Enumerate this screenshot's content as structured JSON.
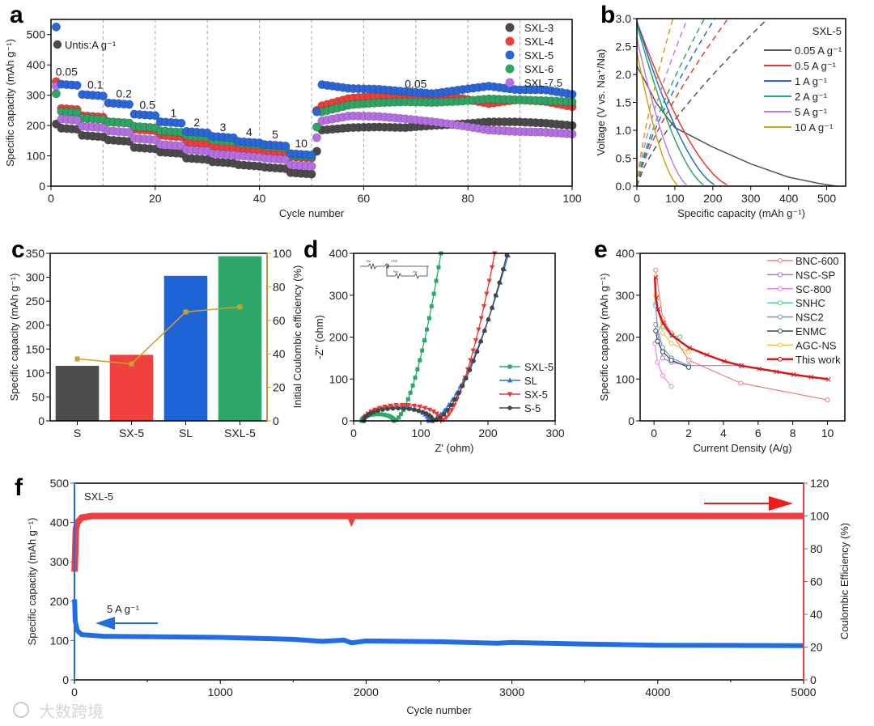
{
  "panels": [
    "a",
    "b",
    "c",
    "d",
    "e",
    "f"
  ],
  "watermark": "大数跨境",
  "chart_data": [
    {
      "id": "a",
      "type": "scatter",
      "xlabel": "Cycle number",
      "ylabel": "Specific capacity (mAh g⁻¹)",
      "xlim": [
        0,
        100
      ],
      "ylim": [
        0,
        550
      ],
      "xticks": [
        0,
        20,
        40,
        60,
        80,
        100
      ],
      "yticks": [
        0,
        100,
        200,
        300,
        400,
        500
      ],
      "grid": "dashed vertical every 10 cycles",
      "units_note": "Untis:A g⁻¹",
      "rate_labels": [
        {
          "text": "0.05",
          "x": 3,
          "y": 365
        },
        {
          "text": "0.1",
          "x": 8.5,
          "y": 322
        },
        {
          "text": "0.2",
          "x": 14,
          "y": 292
        },
        {
          "text": "0.5",
          "x": 18.5,
          "y": 255
        },
        {
          "text": "1",
          "x": 23.5,
          "y": 228
        },
        {
          "text": "2",
          "x": 28,
          "y": 198
        },
        {
          "text": "3",
          "x": 33,
          "y": 182
        },
        {
          "text": "4",
          "x": 38,
          "y": 165
        },
        {
          "text": "5",
          "x": 43,
          "y": 158
        },
        {
          "text": "10",
          "x": 48,
          "y": 128
        },
        {
          "text": "0.05",
          "x": 70,
          "y": 325
        }
      ],
      "legend": "top-right",
      "series": [
        {
          "name": "SXL-3",
          "color": "#4a4a4a",
          "cycle1": 205,
          "rate_segments": [
            190,
            165,
            150,
            125,
            110,
            90,
            78,
            68,
            60,
            42
          ],
          "cycle51": 115,
          "recovery_segments": [
            185,
            193,
            195,
            193,
            200,
            205,
            212,
            212,
            208,
            200
          ]
        },
        {
          "name": "SXL-4",
          "color": "#ea3f3b",
          "cycle1": 345,
          "rate_segments": [
            255,
            230,
            210,
            185,
            165,
            140,
            125,
            115,
            105,
            95
          ],
          "cycle51": 250,
          "recovery_segments": [
            265,
            290,
            298,
            300,
            298,
            290,
            272,
            285,
            280,
            262
          ]
        },
        {
          "name": "SXL-6",
          "color": "#2fa564",
          "cycle1": 305,
          "rate_segments": [
            245,
            222,
            210,
            195,
            180,
            165,
            150,
            140,
            130,
            100
          ],
          "cycle51": 195,
          "recovery_segments": [
            245,
            268,
            275,
            278,
            276,
            280,
            288,
            285,
            282,
            278
          ]
        },
        {
          "name": "SXL-7.5",
          "color": "#b66fe2",
          "cycle1": 330,
          "rate_segments": [
            220,
            195,
            180,
            155,
            135,
            118,
            105,
            98,
            90,
            68
          ],
          "cycle51": 160,
          "recovery_segments": [
            215,
            232,
            230,
            222,
            212,
            200,
            185,
            180,
            178,
            172
          ]
        },
        {
          "name": "SXL-5",
          "color": "#2a66d8",
          "cycle1": 525,
          "rate_segments": [
            335,
            300,
            272,
            235,
            210,
            178,
            162,
            145,
            135,
            105
          ],
          "cycle51": 245,
          "recovery_segments": [
            335,
            322,
            320,
            312,
            305,
            318,
            330,
            318,
            318,
            303
          ]
        }
      ],
      "legend_order": [
        "SXL-3",
        "SXL-4",
        "SXL-5",
        "SXL-6",
        "SXL-7.5"
      ]
    },
    {
      "id": "b",
      "type": "line",
      "title": "SXL-5",
      "xlabel": "Specific capacity (mAh g⁻¹)",
      "ylabel": "Voltage (V vs. Na⁺/Na)",
      "xlim": [
        0,
        550
      ],
      "ylim": [
        0,
        3.0
      ],
      "xticks": [
        0,
        100,
        200,
        300,
        400,
        500
      ],
      "yticks": [
        0.0,
        0.5,
        1.0,
        1.5,
        2.0,
        2.5,
        3.0
      ],
      "ytick_labels": [
        "0.0",
        "0.5",
        "1.0",
        "1.5",
        "2.0",
        "2.5",
        "3.0"
      ],
      "legend": "top-right",
      "series": [
        {
          "name": "0.05  A g⁻¹",
          "color": "#555555",
          "start_voltage": 2.15,
          "discharge_capacity": 525,
          "charge_capacity": 345
        },
        {
          "name": "0.5 A g⁻¹",
          "color": "#e53935",
          "start_voltage": 2.95,
          "discharge_capacity": 250,
          "charge_capacity": 240
        },
        {
          "name": "1 A g⁻¹",
          "color": "#1e6fd9",
          "start_voltage": 2.95,
          "discharge_capacity": 215,
          "charge_capacity": 205
        },
        {
          "name": "2 A g⁻¹",
          "color": "#27a86a",
          "start_voltage": 2.9,
          "discharge_capacity": 185,
          "charge_capacity": 178
        },
        {
          "name": "5 A g⁻¹",
          "color": "#c07ce8",
          "start_voltage": 2.65,
          "discharge_capacity": 138,
          "charge_capacity": 133
        },
        {
          "name": "10 A g⁻¹",
          "color": "#d4a017",
          "start_voltage": 2.4,
          "discharge_capacity": 112,
          "charge_capacity": 95
        }
      ]
    },
    {
      "id": "c",
      "type": "bar",
      "categories": [
        "S",
        "SX-5",
        "SL",
        "SXL-5"
      ],
      "values": [
        115,
        138,
        303,
        344
      ],
      "colors": [
        "#4d4d4d",
        "#f04040",
        "#1e64d6",
        "#2ea86a"
      ],
      "ylabel": "Specific capacity (mAh g⁻¹)",
      "ylim": [
        0,
        350
      ],
      "yticks": [
        0,
        50,
        100,
        150,
        200,
        250,
        300,
        350
      ],
      "secondary": {
        "name": "Initial Coulombic efficiency (%)",
        "values": [
          37,
          34,
          65,
          68
        ],
        "ylim": [
          0,
          100
        ],
        "yticks": [
          0,
          20,
          40,
          60,
          80,
          100
        ],
        "color": "#c9a227"
      }
    },
    {
      "id": "d",
      "type": "scatter",
      "xlabel": "Z' (ohm)",
      "ylabel": "-Z'' (ohm)",
      "xlim": [
        0,
        300
      ],
      "ylim": [
        0,
        400
      ],
      "xticks": [
        0,
        100,
        200,
        300
      ],
      "yticks": [
        0,
        100,
        200,
        300,
        400
      ],
      "legend": "bottom-right",
      "inset_labels": [
        "Rs",
        "CPE",
        "Rct",
        "Zw"
      ],
      "series": [
        {
          "name": "SXL-5",
          "color": "#2aa86a",
          "marker": "square",
          "arc_start": 12,
          "arc_end": 60,
          "arc_peak": 16,
          "tail_end": [
            130,
            400
          ]
        },
        {
          "name": "SL",
          "color": "#2d6fd6",
          "marker": "triangle-up",
          "arc_start": 15,
          "arc_end": 112,
          "arc_peak": 33,
          "tail_end": [
            230,
            395
          ]
        },
        {
          "name": "SX-5",
          "color": "#e53935",
          "marker": "triangle-down",
          "arc_start": 15,
          "arc_end": 130,
          "arc_peak": 38,
          "tail_end": [
            210,
            400
          ]
        },
        {
          "name": "S-5",
          "color": "#444444",
          "marker": "circle",
          "arc_start": 15,
          "arc_end": 118,
          "arc_peak": 30,
          "tail_end": [
            228,
            395
          ]
        }
      ]
    },
    {
      "id": "e",
      "type": "line",
      "xlabel": "Current Density (A/g)",
      "ylabel": "Specific capacity (mAh g⁻¹)",
      "xlim": [
        -0.8,
        11
      ],
      "ylim": [
        0,
        400
      ],
      "xticks": [
        0,
        2,
        4,
        6,
        8,
        10
      ],
      "yticks": [
        0,
        100,
        200,
        300,
        400
      ],
      "legend": "top-right",
      "series": [
        {
          "name": "BNC-600",
          "color": "#f08080",
          "points": [
            [
              0.1,
              360
            ],
            [
              0.5,
              245
            ],
            [
              1,
              210
            ],
            [
              2,
              145
            ],
            [
              5,
              90
            ],
            [
              10,
              50
            ]
          ]
        },
        {
          "name": "NSC-SP",
          "color": "#b06ee0",
          "points": [
            [
              0.1,
              230
            ],
            [
              0.5,
              150
            ],
            [
              1,
              140
            ],
            [
              2,
              132
            ],
            [
              5,
              132
            ]
          ]
        },
        {
          "name": "SC-800",
          "color": "#ee82ee",
          "points": [
            [
              0.05,
              185
            ],
            [
              0.2,
              140
            ],
            [
              0.5,
              108
            ],
            [
              1,
              82
            ]
          ]
        },
        {
          "name": "SNHC",
          "color": "#5cc98a",
          "points": [
            [
              0.1,
              280
            ],
            [
              0.5,
              225
            ],
            [
              1,
              205
            ],
            [
              1.5,
              200
            ]
          ]
        },
        {
          "name": "NSC2",
          "color": "#6d9cc8",
          "points": [
            [
              0.1,
              275
            ],
            [
              0.2,
              220
            ],
            [
              0.5,
              175
            ],
            [
              1,
              150
            ],
            [
              2,
              132
            ]
          ]
        },
        {
          "name": "ENMC",
          "color": "#2f4f4f",
          "points": [
            [
              0.1,
              215
            ],
            [
              0.2,
              190
            ],
            [
              0.5,
              165
            ],
            [
              1,
              145
            ],
            [
              2,
              128
            ]
          ]
        },
        {
          "name": "AGC-NS",
          "color": "#f0c040",
          "points": [
            [
              0.1,
              300
            ],
            [
              0.5,
              210
            ],
            [
              1,
              185
            ],
            [
              2,
              165
            ]
          ]
        },
        {
          "name": "This work",
          "color": "#d81818",
          "points": [
            [
              0.05,
              343
            ],
            [
              0.1,
              295
            ],
            [
              0.2,
              268
            ],
            [
              0.5,
              235
            ],
            [
              1,
              205
            ],
            [
              2,
              175
            ],
            [
              3,
              158
            ],
            [
              4,
              143
            ],
            [
              5,
              132
            ],
            [
              6,
              125
            ],
            [
              7,
              118
            ],
            [
              8,
              111
            ],
            [
              9,
              105
            ],
            [
              10,
              100
            ]
          ]
        }
      ]
    },
    {
      "id": "f",
      "type": "line",
      "title": "SXL-5",
      "annotation": "5 A g⁻¹",
      "xlabel": "Cycle number",
      "ylabel": "Specific capacity (mAh g⁻¹)",
      "xlim": [
        0,
        5000
      ],
      "ylim": [
        0,
        500
      ],
      "xticks": [
        0,
        1000,
        2000,
        3000,
        4000,
        5000
      ],
      "yticks": [
        0,
        100,
        200,
        300,
        400,
        500
      ],
      "capacity": {
        "color": "#1f6fe0",
        "points": [
          [
            1,
            205
          ],
          [
            5,
            150
          ],
          [
            20,
            125
          ],
          [
            50,
            115
          ],
          [
            200,
            111
          ],
          [
            1000,
            108
          ],
          [
            1500,
            103
          ],
          [
            1700,
            98
          ],
          [
            1850,
            101
          ],
          [
            1900,
            94
          ],
          [
            2000,
            99
          ],
          [
            2500,
            97
          ],
          [
            2900,
            93
          ],
          [
            3000,
            95
          ],
          [
            3500,
            91
          ],
          [
            4000,
            88
          ],
          [
            5000,
            87
          ]
        ]
      },
      "secondary": {
        "name": "Coulombic Efficiency (%)",
        "color": "#ee4040",
        "ylim": [
          0,
          120
        ],
        "yticks": [
          0,
          20,
          40,
          60,
          80,
          100,
          120
        ],
        "points": [
          [
            1,
            66
          ],
          [
            10,
            92
          ],
          [
            20,
            96
          ],
          [
            50,
            99
          ],
          [
            120,
            100
          ],
          [
            1890,
            100
          ],
          [
            1900,
            98
          ],
          [
            1910,
            100
          ],
          [
            5000,
            100
          ]
        ]
      }
    }
  ]
}
